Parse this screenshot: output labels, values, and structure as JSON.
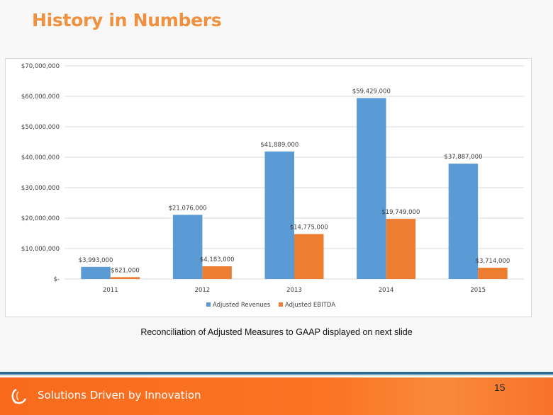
{
  "title": "History in Numbers",
  "note": "Reconciliation of Adjusted Measures to GAAP displayed on next slide",
  "footer": {
    "tagline": "Solutions Driven by Innovation",
    "page_number": "15"
  },
  "chart_data": {
    "type": "bar",
    "categories": [
      "2011",
      "2012",
      "2013",
      "2014",
      "2015"
    ],
    "series": [
      {
        "name": "Adjusted Revenues",
        "color": "#5b9bd5",
        "values": [
          3993000,
          21076000,
          41889000,
          59429000,
          37887000
        ],
        "labels": [
          "$3,993,000",
          "$21,076,000",
          "$41,889,000",
          "$59,429,000",
          "$37,887,000"
        ]
      },
      {
        "name": "Adjusted EBITDA",
        "color": "#ed7d31",
        "values": [
          621000,
          4183000,
          14775000,
          19749000,
          3714000
        ],
        "labels": [
          "$621,000",
          "$4,183,000",
          "$14,775,000",
          "$19,749,000",
          "$3,714,000"
        ]
      }
    ],
    "ylim": [
      0,
      70000000
    ],
    "yticks": [
      0,
      10000000,
      20000000,
      30000000,
      40000000,
      50000000,
      60000000,
      70000000
    ],
    "ytick_labels": [
      "$-",
      "$10,000,000",
      "$20,000,000",
      "$30,000,000",
      "$40,000,000",
      "$50,000,000",
      "$60,000,000",
      "$70,000,000"
    ],
    "grid": true,
    "legend": "bottom"
  }
}
